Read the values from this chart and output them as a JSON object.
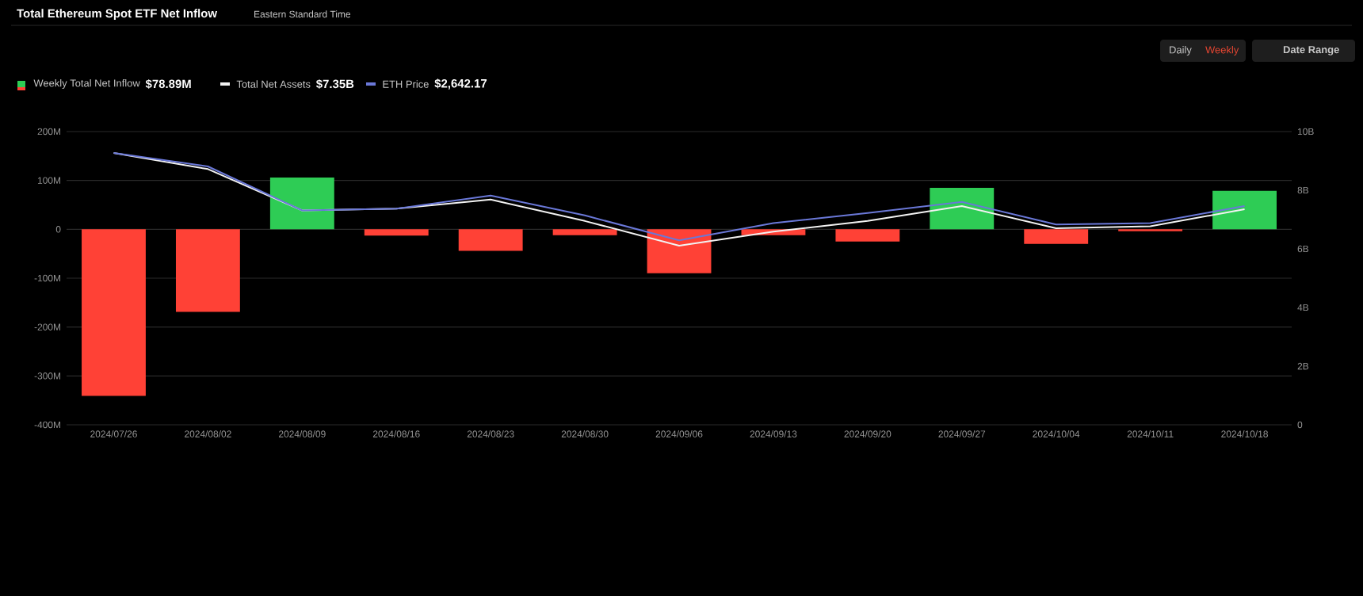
{
  "chart_data": {
    "type": "bar",
    "title": "Total Ethereum Spot ETF Net Inflow",
    "subtitle": "Eastern Standard Time",
    "categories": [
      "2024/07/26",
      "2024/08/02",
      "2024/08/09",
      "2024/08/16",
      "2024/08/23",
      "2024/08/30",
      "2024/09/06",
      "2024/09/13",
      "2024/09/20",
      "2024/09/27",
      "2024/10/04",
      "2024/10/11",
      "2024/10/18"
    ],
    "series": [
      {
        "name": "Weekly Total Net Inflow",
        "colors": [
          "#ff4136",
          "#ff4136",
          "#2ecc55",
          "#ff4136",
          "#ff4136",
          "#ff4136",
          "#ff4136",
          "#ff4136",
          "#ff4136",
          "#2ecc55",
          "#ff4136",
          "#ff4136",
          "#2ecc55"
        ],
        "values": [
          -341,
          -169,
          106,
          -13,
          -44,
          -12,
          -90,
          -12,
          -25,
          85,
          -30,
          -4,
          79
        ]
      },
      {
        "name": "Total Net Assets",
        "type": "line",
        "axis": "y2",
        "color": "#f2f2f2",
        "values": [
          9.27,
          8.72,
          7.31,
          7.37,
          7.68,
          6.95,
          6.11,
          6.59,
          6.95,
          7.46,
          6.7,
          6.77,
          7.35
        ]
      },
      {
        "name": "ETH Price",
        "type": "line",
        "axis": "y2",
        "color": "#6a78d8",
        "values": [
          9.27,
          8.81,
          7.31,
          7.37,
          7.82,
          7.14,
          6.29,
          6.88,
          7.22,
          7.6,
          6.83,
          6.88,
          7.46
        ]
      }
    ],
    "ylim": [
      -400,
      200
    ],
    "yticks": [
      {
        "value": -400,
        "label": "-400M"
      },
      {
        "value": -300,
        "label": "-300M"
      },
      {
        "value": -200,
        "label": "-200M"
      },
      {
        "value": -100,
        "label": "-100M"
      },
      0,
      {
        "value": 100,
        "label": "100M"
      },
      {
        "value": 200,
        "label": "200M"
      }
    ],
    "y2lim": [
      0,
      10
    ],
    "y2ticks": [
      0,
      {
        "value": 2,
        "label": "2B"
      },
      {
        "value": 4,
        "label": "4B"
      },
      {
        "value": 6,
        "label": "6B"
      },
      {
        "value": 8,
        "label": "8B"
      },
      {
        "value": 10,
        "label": "10B"
      }
    ],
    "grid": "y",
    "legend": "top left",
    "marker": "none",
    "line_style": "solid",
    "annotations": [
      "$78.89M",
      "$7.35B",
      "$2,642.17",
      "Daily",
      "Weekly",
      "Date Range"
    ]
  }
}
